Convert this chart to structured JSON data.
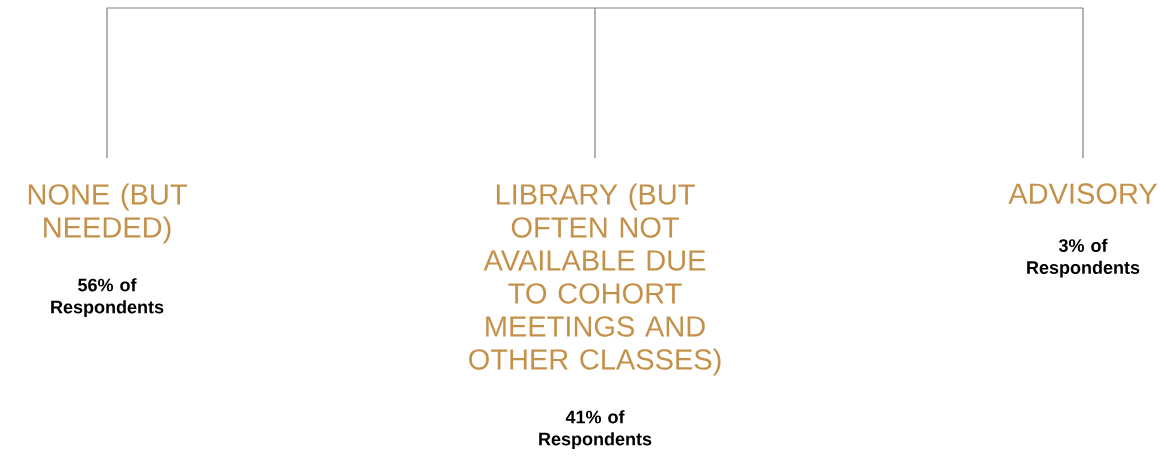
{
  "chart_data": {
    "type": "other",
    "categories": [
      "NONE (BUT NEEDED)",
      "LIBRARY (BUT OFTEN NOT AVAILABLE DUE TO COHORT MEETINGS AND OTHER CLASSES)",
      "ADVISORY"
    ],
    "values": [
      56,
      41,
      3
    ],
    "data_labels": true,
    "annotations": [
      "% of Respondents"
    ]
  }
}
